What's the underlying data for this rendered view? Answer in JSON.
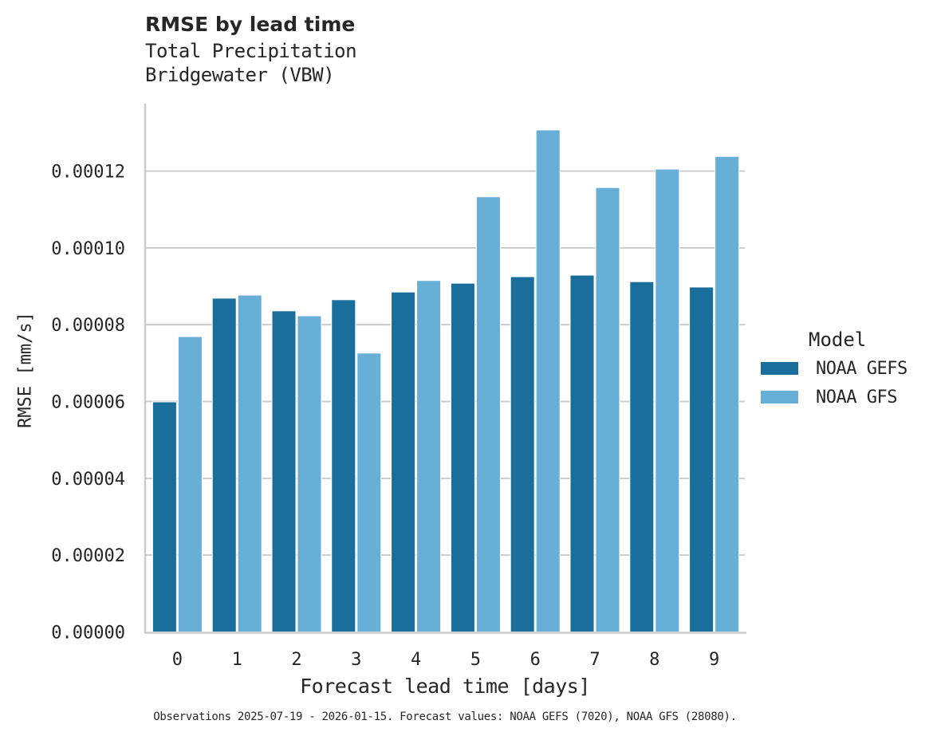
{
  "header": {
    "title": "RMSE by lead time",
    "subtitle_line1": "Total Precipitation",
    "subtitle_line2": "Bridgewater (VBW)"
  },
  "axes": {
    "xlabel": "Forecast lead time [days]",
    "ylabel": "RMSE [mm/s]",
    "yticks": [
      "0.00000",
      "0.00002",
      "0.00004",
      "0.00006",
      "0.00008",
      "0.00010",
      "0.00012"
    ],
    "xticks": [
      "0",
      "1",
      "2",
      "3",
      "4",
      "5",
      "6",
      "7",
      "8",
      "9"
    ]
  },
  "legend": {
    "title": "Model",
    "items": [
      {
        "label": "NOAA GEFS",
        "color": "#1a6e9c"
      },
      {
        "label": "NOAA GFS",
        "color": "#68afd8"
      }
    ]
  },
  "footer": "Observations 2025-07-19 - 2026-01-15. Forecast values: NOAA GEFS (7020), NOAA GFS (28080).",
  "chart_data": {
    "type": "bar",
    "title": "RMSE by lead time",
    "subtitle": "Total Precipitation\nBridgewater (VBW)",
    "xlabel": "Forecast lead time [days]",
    "ylabel": "RMSE [mm/s]",
    "categories": [
      "0",
      "1",
      "2",
      "3",
      "4",
      "5",
      "6",
      "7",
      "8",
      "9"
    ],
    "series": [
      {
        "name": "NOAA GEFS",
        "color": "#1a6e9c",
        "values": [
          5.99e-05,
          8.69e-05,
          8.36e-05,
          8.65e-05,
          8.85e-05,
          9.08e-05,
          9.25e-05,
          9.29e-05,
          9.12e-05,
          8.98e-05
        ]
      },
      {
        "name": "NOAA GFS",
        "color": "#68afd8",
        "values": [
          7.69e-05,
          8.77e-05,
          8.23e-05,
          7.26e-05,
          9.15e-05,
          0.0001133,
          0.0001307,
          0.0001157,
          0.0001205,
          0.0001238
        ]
      }
    ],
    "ylim": [
      0,
      0.000137
    ],
    "grid": "horizontal",
    "legend_position": "right",
    "legend_title": "Model",
    "footnote": "Observations 2025-07-19 - 2026-01-15. Forecast values: NOAA GEFS (7020), NOAA GFS (28080)."
  }
}
